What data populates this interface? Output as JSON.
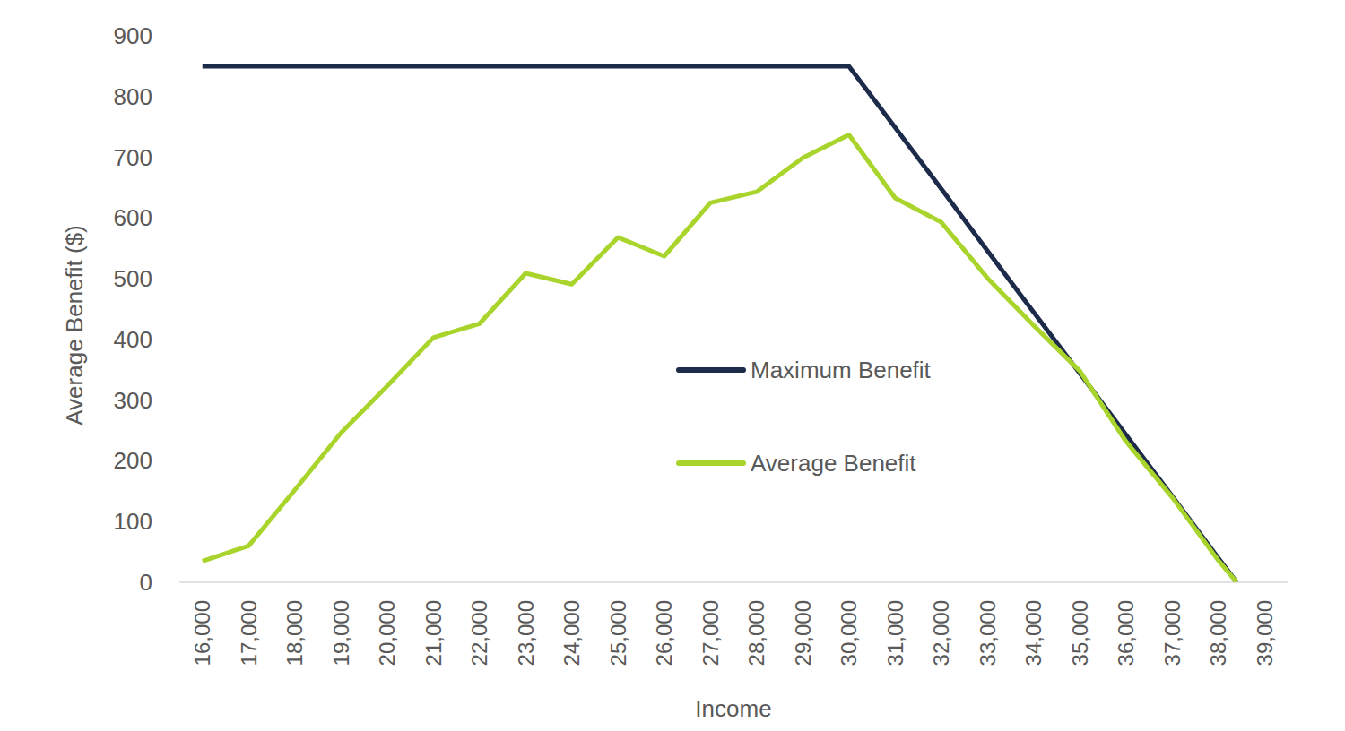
{
  "chart_data": {
    "type": "line",
    "x_label": "Income",
    "y_label": "Average Benefit ($)",
    "x": [
      16000,
      17000,
      18000,
      19000,
      20000,
      21000,
      22000,
      23000,
      24000,
      25000,
      26000,
      27000,
      28000,
      29000,
      30000,
      31000,
      32000,
      33000,
      34000,
      35000,
      36000,
      37000,
      38000,
      38400
    ],
    "series": [
      {
        "name": "Maximum Benefit",
        "color": "#1d2b4a",
        "values": [
          850,
          850,
          850,
          850,
          850,
          850,
          850,
          850,
          850,
          850,
          850,
          850,
          850,
          850,
          850,
          749,
          648,
          546,
          445,
          344,
          243,
          142,
          40,
          0
        ]
      },
      {
        "name": "Average Benefit",
        "color": "#a8d42c",
        "values": [
          35,
          60,
          152,
          246,
          323,
          403,
          426,
          509,
          491,
          568,
          537,
          625,
          643,
          699,
          737,
          633,
          593,
          501,
          423,
          348,
          232,
          140,
          36,
          0
        ]
      }
    ],
    "xlim": [
      15500,
      39500
    ],
    "xticks": [
      {
        "value": 16000,
        "label": "16,000"
      },
      {
        "value": 17000,
        "label": "17,000"
      },
      {
        "value": 18000,
        "label": "18,000"
      },
      {
        "value": 19000,
        "label": "19,000"
      },
      {
        "value": 20000,
        "label": "20,000"
      },
      {
        "value": 21000,
        "label": "21,000"
      },
      {
        "value": 22000,
        "label": "22,000"
      },
      {
        "value": 23000,
        "label": "23,000"
      },
      {
        "value": 24000,
        "label": "24,000"
      },
      {
        "value": 25000,
        "label": "25,000"
      },
      {
        "value": 26000,
        "label": "26,000"
      },
      {
        "value": 27000,
        "label": "27,000"
      },
      {
        "value": 28000,
        "label": "28,000"
      },
      {
        "value": 29000,
        "label": "29,000"
      },
      {
        "value": 30000,
        "label": "30,000"
      },
      {
        "value": 31000,
        "label": "31,000"
      },
      {
        "value": 32000,
        "label": "32,000"
      },
      {
        "value": 33000,
        "label": "33,000"
      },
      {
        "value": 34000,
        "label": "34,000"
      },
      {
        "value": 35000,
        "label": "35,000"
      },
      {
        "value": 36000,
        "label": "36,000"
      },
      {
        "value": 37000,
        "label": "37,000"
      },
      {
        "value": 38000,
        "label": "38,000"
      },
      {
        "value": 39000,
        "label": "39,000"
      }
    ],
    "ylim": [
      0,
      900
    ],
    "yticks": [
      0,
      100,
      200,
      300,
      400,
      500,
      600,
      700,
      800,
      900
    ],
    "grid": false,
    "legend": "center"
  }
}
